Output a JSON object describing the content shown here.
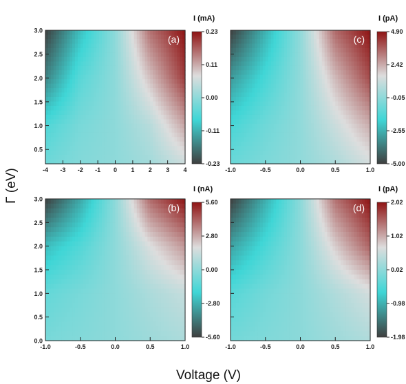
{
  "figure": {
    "shared_ylabel": "Γ (eV)",
    "shared_xlabel": "Voltage (V)"
  },
  "chart_data": [
    {
      "type": "heatmap",
      "panel_label": "(a)",
      "colorbar_title": "I (mA)",
      "colorbar_ticks": [
        "0.23",
        "0.11",
        "0.00",
        "-0.11",
        "-0.23"
      ],
      "colorbar_range": [
        -0.23,
        0.23
      ],
      "xlim": [
        -4,
        4
      ],
      "ylim": [
        0.2,
        3.0
      ],
      "xticks": [
        -4,
        -3,
        -2,
        -1,
        0,
        1,
        2,
        3,
        4
      ],
      "xtick_labels": [
        "-4",
        "-3",
        "-2",
        "-1",
        "0",
        "1",
        "2",
        "3",
        "4"
      ],
      "yticks": [
        3.0,
        2.5,
        2.0,
        1.5,
        1.0,
        0.5
      ],
      "ytick_labels": [
        "3.0",
        "2.5",
        "2.0",
        "1.5",
        "1.0",
        "0.5"
      ],
      "show_y_labels": true,
      "colormap": [
        "#3f3f3f",
        "#3fd6d6",
        "#dddddd",
        "#8f1414"
      ],
      "z_sample": {
        "x": [
          -4,
          -2,
          0,
          2,
          4
        ],
        "y": [
          3.0,
          2.0,
          1.0,
          0.2
        ],
        "values": [
          [
            -0.23,
            -0.1,
            0.0,
            0.16,
            0.23
          ],
          [
            -0.16,
            -0.05,
            0.0,
            0.1,
            0.2
          ],
          [
            -0.06,
            -0.02,
            0.0,
            0.04,
            0.12
          ],
          [
            -0.03,
            -0.01,
            0.0,
            0.02,
            0.06
          ]
        ]
      }
    },
    {
      "type": "heatmap",
      "panel_label": "(c)",
      "colorbar_title": "I (pA)",
      "colorbar_ticks": [
        "4.90",
        "2.42",
        "-0.05",
        "-2.55",
        "-5.00"
      ],
      "colorbar_range": [
        -5.0,
        4.9
      ],
      "xlim": [
        -1.0,
        1.0
      ],
      "ylim": [
        0.2,
        3.0
      ],
      "xticks": [
        -1.0,
        -0.5,
        0.0,
        0.5,
        1.0
      ],
      "xtick_labels": [
        "-1.0",
        "-0.5",
        "0.0",
        "0.5",
        "1.0"
      ],
      "yticks": [
        3.0,
        2.5,
        2.0,
        1.5,
        1.0,
        0.5
      ],
      "ytick_labels": [],
      "show_y_labels": false,
      "colormap": [
        "#3f3f3f",
        "#3fd6d6",
        "#dddddd",
        "#8f1414"
      ],
      "z_sample": {
        "x": [
          -1.0,
          -0.5,
          0.0,
          0.5,
          1.0
        ],
        "y": [
          3.0,
          2.0,
          1.0,
          0.2
        ],
        "values": [
          [
            -5.0,
            -2.5,
            0.0,
            3.5,
            4.9
          ],
          [
            -3.0,
            -1.5,
            0.0,
            2.2,
            4.0
          ],
          [
            -1.5,
            -0.7,
            0.0,
            1.2,
            2.4
          ],
          [
            -0.8,
            -0.4,
            0.0,
            0.6,
            1.4
          ]
        ]
      }
    },
    {
      "type": "heatmap",
      "panel_label": "(b)",
      "colorbar_title": "I (nA)",
      "colorbar_ticks": [
        "5.60",
        "2.80",
        "0.00",
        "-2.80",
        "-5.60"
      ],
      "colorbar_range": [
        -5.6,
        5.6
      ],
      "xlim": [
        -1.0,
        1.0
      ],
      "ylim": [
        0.0,
        3.0
      ],
      "xticks": [
        -1.0,
        -0.5,
        0.0,
        0.5,
        1.0
      ],
      "xtick_labels": [
        "-1.0",
        "-0.5",
        "0.0",
        "0.5",
        "1.0"
      ],
      "yticks": [
        3.0,
        2.5,
        2.0,
        1.5,
        1.0,
        0.5,
        0.0
      ],
      "ytick_labels": [
        "3.0",
        "2.5",
        "2.0",
        "1.5",
        "1.0",
        "0.5",
        "0.0"
      ],
      "show_y_labels": true,
      "colormap": [
        "#3f3f3f",
        "#3fd6d6",
        "#dddddd",
        "#8f1414"
      ],
      "z_sample": {
        "x": [
          -1.0,
          -0.5,
          0.0,
          0.5,
          1.0
        ],
        "y": [
          3.0,
          2.0,
          1.0,
          0.0
        ],
        "values": [
          [
            -5.6,
            -3.0,
            0.0,
            4.0,
            5.6
          ],
          [
            -2.5,
            -1.4,
            0.0,
            1.8,
            3.2
          ],
          [
            -1.0,
            -0.5,
            0.0,
            0.7,
            1.3
          ],
          [
            -0.5,
            -0.25,
            0.0,
            0.35,
            0.7
          ]
        ]
      }
    },
    {
      "type": "heatmap",
      "panel_label": "(d)",
      "colorbar_title": "I (pA)",
      "colorbar_ticks": [
        "2.02",
        "1.02",
        "0.02",
        "-0.98",
        "-1.98"
      ],
      "colorbar_range": [
        -1.98,
        2.02
      ],
      "xlim": [
        -1.0,
        1.0
      ],
      "ylim": [
        0.0,
        3.0
      ],
      "xticks": [
        -1.0,
        -0.5,
        0.0,
        0.5,
        1.0
      ],
      "xtick_labels": [
        "-1.0",
        "-0.5",
        "0.0",
        "0.5",
        "1.0"
      ],
      "yticks": [
        3.0,
        2.5,
        2.0,
        1.5,
        1.0,
        0.5,
        0.0
      ],
      "ytick_labels": [],
      "show_y_labels": false,
      "colormap": [
        "#3f3f3f",
        "#3fd6d6",
        "#dddddd",
        "#8f1414"
      ],
      "z_sample": {
        "x": [
          -1.0,
          -0.5,
          0.0,
          0.5,
          1.0
        ],
        "y": [
          3.0,
          2.0,
          1.0,
          0.0
        ],
        "values": [
          [
            -1.98,
            -1.0,
            0.0,
            1.4,
            2.02
          ],
          [
            -1.1,
            -0.55,
            0.0,
            0.8,
            1.5
          ],
          [
            -0.45,
            -0.2,
            0.0,
            0.3,
            0.6
          ],
          [
            -0.2,
            -0.1,
            0.0,
            0.15,
            0.3
          ]
        ]
      }
    }
  ]
}
